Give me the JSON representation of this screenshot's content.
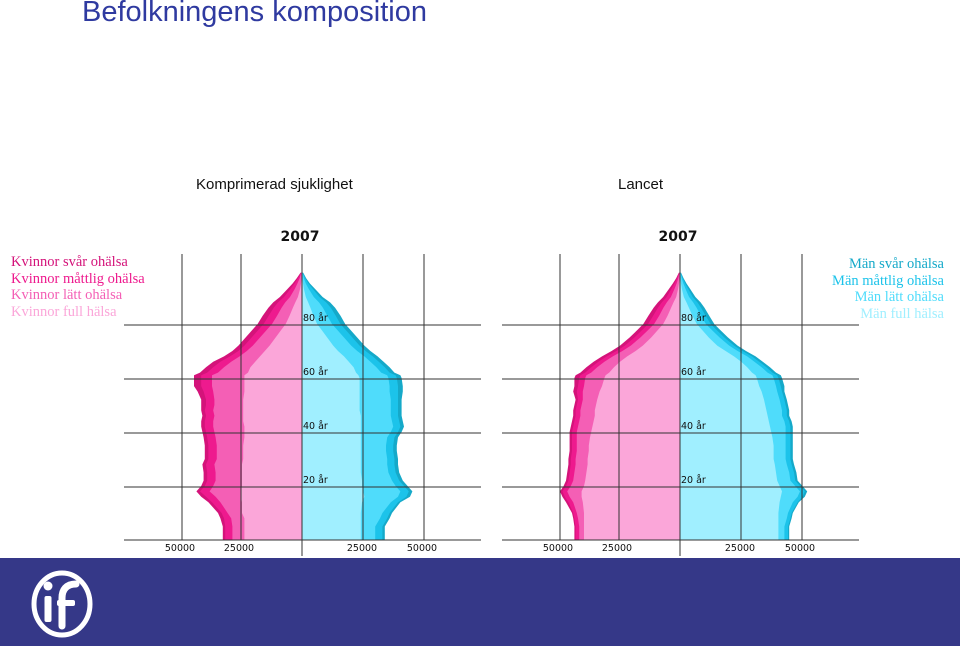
{
  "header": {
    "title": "Befolkningens komposition"
  },
  "subtitles": [
    "Komprimerad sjuklighet",
    "Lancet"
  ],
  "legend_women": [
    "Kvinnor svår ohälsa",
    "Kvinnor måttlig ohälsa",
    "Kvinnor lätt ohälsa",
    "Kvinnor full hälsa"
  ],
  "legend_men": [
    "Män svår ohälsa",
    "Män måttlig ohälsa",
    "Män lätt ohälsa",
    "Män full hälsa"
  ],
  "colors": {
    "women": [
      "#d4137a",
      "#ee1a8e",
      "#f45fb5",
      "#fba6d9"
    ],
    "men": [
      "#15a9c9",
      "#1cc3ea",
      "#4fdcfb",
      "#a0efff"
    ],
    "footer": "#353888",
    "title": "#2f3aa0"
  },
  "chart_data": [
    {
      "type": "area",
      "title": "2007",
      "subtitle": "Komprimerad sjuklighet",
      "x_ticks": [
        "50000",
        "25000",
        "25000",
        "50000"
      ],
      "y_ticks": [
        "80 år",
        "60 år",
        "40 år",
        "20 år"
      ],
      "xlim": [
        -60000,
        60000
      ],
      "ages": [
        0,
        5,
        8,
        10,
        14,
        16,
        18,
        20,
        22,
        25,
        28,
        30,
        33,
        35,
        38,
        40,
        42,
        44,
        46,
        48,
        50,
        52,
        55,
        57,
        60,
        61,
        62,
        64,
        66,
        68,
        70,
        72,
        75,
        78,
        80,
        83,
        86,
        88,
        90,
        93,
        95,
        97,
        99
      ],
      "series": [
        {
          "name": "Kvinnor full hälsa",
          "values": [
            -24000,
            -24000,
            -24000,
            -25000,
            -25000,
            -25500,
            -25500,
            -25000,
            -25000,
            -25000,
            -25000,
            -24500,
            -24500,
            -24500,
            -24000,
            -24000,
            -24000,
            -24500,
            -24500,
            -24500,
            -24500,
            -24500,
            -24000,
            -24000,
            -24000,
            -24000,
            -22500,
            -21500,
            -19500,
            -17500,
            -15500,
            -13500,
            -11000,
            -8500,
            -6800,
            -5200,
            -3800,
            -2800,
            -1700,
            -800,
            -400,
            -150,
            -30
          ]
        },
        {
          "name": "Kvinnor lätt ohälsa",
          "values": [
            -5000,
            -5000,
            -5500,
            -6000,
            -9000,
            -10500,
            -13000,
            -12000,
            -11000,
            -11000,
            -11500,
            -11000,
            -11000,
            -11000,
            -12000,
            -12500,
            -13000,
            -12500,
            -12000,
            -12500,
            -12000,
            -12000,
            -13000,
            -13500,
            -13500,
            -13500,
            -12500,
            -11000,
            -10000,
            -8500,
            -7500,
            -7000,
            -6500,
            -6000,
            -5700,
            -5200,
            -4700,
            -4200,
            -3300,
            -2200,
            -1500,
            -800,
            -250
          ]
        },
        {
          "name": "Kvinnor måttlig ohälsa",
          "values": [
            -3000,
            -3000,
            -3000,
            -2500,
            -3500,
            -4000,
            -4000,
            -3500,
            -3500,
            -3500,
            -3500,
            -3500,
            -3500,
            -3500,
            -3500,
            -3500,
            -3500,
            -3500,
            -3500,
            -3500,
            -3500,
            -3500,
            -4000,
            -4500,
            -4500,
            -4500,
            -4500,
            -4500,
            -4500,
            -4000,
            -3500,
            -3500,
            -3500,
            -3500,
            -3500,
            -3500,
            -3300,
            -3000,
            -2500,
            -1800,
            -1200,
            -700,
            -200
          ]
        },
        {
          "name": "Kvinnor svår ohälsa",
          "values": [
            -1000,
            -1000,
            -1500,
            -1500,
            -1500,
            -2000,
            -1500,
            -1500,
            -1500,
            -1500,
            -1500,
            -1500,
            -1500,
            -1500,
            -1500,
            -1500,
            -1500,
            -1500,
            -1500,
            -1500,
            -2000,
            -2000,
            -2500,
            -3000,
            -3000,
            -3000,
            -3000,
            -3000,
            -3000,
            -2500,
            -2500,
            -2500,
            -2500,
            -2500,
            -2500,
            -2500,
            -2200,
            -2000,
            -1700,
            -1200,
            -800,
            -500,
            -150
          ]
        },
        {
          "name": "Män full hälsa",
          "values": [
            24500,
            24500,
            24500,
            24500,
            25000,
            26000,
            25500,
            25000,
            25000,
            24500,
            24500,
            24500,
            24500,
            24500,
            24500,
            24500,
            24500,
            24500,
            24500,
            24000,
            24000,
            24000,
            24000,
            24000,
            24000,
            23500,
            22500,
            21500,
            19500,
            17500,
            15000,
            13000,
            10500,
            8000,
            6300,
            4800,
            3500,
            2600,
            1600,
            800,
            400,
            150,
            30
          ]
        },
        {
          "name": "Män lätt ohälsa",
          "values": [
            6000,
            6000,
            8000,
            9000,
            12000,
            14000,
            15500,
            14000,
            12500,
            11500,
            11000,
            11000,
            10500,
            10500,
            11000,
            12500,
            13500,
            13000,
            12500,
            13000,
            13000,
            13000,
            12500,
            12500,
            12000,
            12000,
            10500,
            9500,
            9000,
            8500,
            8000,
            7500,
            7000,
            6500,
            6200,
            5800,
            5200,
            4500,
            3300,
            2000,
            1200,
            600,
            180
          ]
        },
        {
          "name": "Män måttlig ohälsa",
          "values": [
            3000,
            3000,
            3000,
            3000,
            3000,
            3500,
            3500,
            3500,
            3000,
            3000,
            3000,
            3000,
            3000,
            3000,
            3000,
            3000,
            3000,
            3000,
            3000,
            3000,
            3000,
            3000,
            3500,
            3500,
            3500,
            3500,
            3500,
            3500,
            3500,
            3500,
            3500,
            3500,
            3500,
            3500,
            3500,
            3500,
            3300,
            3000,
            2400,
            1700,
            1100,
            600,
            200
          ]
        },
        {
          "name": "Män svår ohälsa",
          "values": [
            1000,
            1000,
            1000,
            1000,
            1000,
            1500,
            1500,
            1500,
            1500,
            1500,
            1500,
            1500,
            1500,
            1500,
            1500,
            1500,
            1500,
            1500,
            1500,
            1500,
            1500,
            1500,
            2000,
            2000,
            2000,
            2000,
            2000,
            2000,
            2000,
            2000,
            2000,
            2000,
            2000,
            2000,
            2000,
            2000,
            1800,
            1600,
            1300,
            900,
            600,
            350,
            120
          ]
        }
      ]
    },
    {
      "type": "area",
      "title": "2007",
      "subtitle": "Lancet",
      "x_ticks": [
        "50000",
        "25000",
        "25000",
        "50000"
      ],
      "y_ticks": [
        "80 år",
        "60 år",
        "40 år",
        "20 år"
      ],
      "xlim": [
        -60000,
        60000
      ],
      "ages": [
        0,
        5,
        8,
        10,
        14,
        16,
        18,
        20,
        22,
        25,
        28,
        30,
        33,
        35,
        38,
        40,
        42,
        44,
        46,
        48,
        50,
        52,
        55,
        57,
        60,
        61,
        62,
        64,
        66,
        68,
        70,
        72,
        75,
        78,
        80,
        83,
        86,
        88,
        90,
        93,
        95,
        97,
        99
      ],
      "series": [
        {
          "name": "Kvinnor full hälsa",
          "values": [
            -40000,
            -40000,
            -40000,
            -40000,
            -40500,
            -41000,
            -41000,
            -40000,
            -39500,
            -39000,
            -38500,
            -38500,
            -38000,
            -38000,
            -37500,
            -37000,
            -36500,
            -36000,
            -35500,
            -35500,
            -35000,
            -34500,
            -33500,
            -32500,
            -31500,
            -31000,
            -29500,
            -27500,
            -25000,
            -22000,
            -18500,
            -15500,
            -12000,
            -9000,
            -7000,
            -5200,
            -3700,
            -2700,
            -1600,
            -800,
            -400,
            -150,
            -30
          ]
        },
        {
          "name": "Kvinnor lätt ohälsa",
          "values": [
            -2000,
            -2000,
            -2500,
            -3000,
            -4000,
            -5000,
            -6000,
            -5500,
            -5000,
            -5000,
            -5000,
            -5000,
            -5000,
            -5000,
            -5500,
            -6000,
            -6000,
            -6000,
            -6000,
            -6000,
            -6000,
            -6000,
            -7000,
            -7500,
            -8000,
            -8000,
            -7500,
            -7000,
            -6500,
            -6000,
            -5500,
            -5000,
            -4500,
            -4000,
            -3800,
            -3500,
            -3200,
            -2800,
            -2200,
            -1500,
            -1000,
            -550,
            -180
          ]
        },
        {
          "name": "Kvinnor måttlig ohälsa",
          "values": [
            -1500,
            -1500,
            -1500,
            -1500,
            -2000,
            -2000,
            -2000,
            -2000,
            -2000,
            -2000,
            -2000,
            -2000,
            -2000,
            -2000,
            -2000,
            -2000,
            -2000,
            -2000,
            -2000,
            -2000,
            -2000,
            -2000,
            -2500,
            -2500,
            -2500,
            -2500,
            -2500,
            -2500,
            -2500,
            -2500,
            -2500,
            -2500,
            -2500,
            -2500,
            -2500,
            -2500,
            -2300,
            -2100,
            -1800,
            -1300,
            -900,
            -500,
            -150
          ]
        },
        {
          "name": "Kvinnor svår ohälsa",
          "values": [
            -500,
            -500,
            -500,
            -500,
            -1000,
            -1000,
            -1000,
            -1000,
            -1000,
            -1000,
            -1000,
            -1000,
            -1000,
            -1000,
            -1000,
            -1000,
            -1000,
            -1000,
            -1000,
            -1000,
            -1000,
            -1000,
            -1500,
            -1500,
            -2000,
            -2000,
            -2000,
            -2000,
            -2000,
            -2000,
            -2000,
            -2000,
            -2000,
            -2000,
            -2000,
            -2000,
            -1800,
            -1600,
            -1400,
            -1000,
            -700,
            -400,
            -120
          ]
        },
        {
          "name": "Män full hälsa",
          "values": [
            41000,
            41000,
            41000,
            41000,
            41500,
            42000,
            42500,
            41500,
            40500,
            40000,
            39500,
            39000,
            39000,
            39000,
            38500,
            38000,
            37500,
            37000,
            36500,
            36000,
            35500,
            35000,
            34000,
            33000,
            32000,
            31500,
            30000,
            28000,
            25500,
            22500,
            19000,
            15500,
            12000,
            9000,
            7000,
            5200,
            3700,
            2700,
            1600,
            800,
            400,
            150,
            30
          ]
        },
        {
          "name": "Män lätt ohälsa",
          "values": [
            2500,
            2500,
            3500,
            4000,
            5500,
            7000,
            7500,
            6500,
            5500,
            5500,
            5000,
            5000,
            5000,
            5000,
            5500,
            6000,
            6500,
            6500,
            6000,
            6500,
            6500,
            6500,
            6500,
            7000,
            7000,
            7000,
            6500,
            6000,
            5500,
            5500,
            5000,
            5000,
            4500,
            4000,
            3800,
            3500,
            3200,
            2800,
            2200,
            1500,
            1000,
            550,
            180
          ]
        },
        {
          "name": "Män måttlig ohälsa",
          "values": [
            1500,
            1500,
            1500,
            1500,
            2000,
            2000,
            2000,
            2000,
            2000,
            2000,
            2000,
            2000,
            2000,
            2000,
            2000,
            2000,
            2000,
            2000,
            2000,
            2000,
            2000,
            2000,
            2000,
            2000,
            2000,
            2000,
            2000,
            2000,
            2000,
            2000,
            2000,
            2000,
            2000,
            2000,
            2000,
            2000,
            1900,
            1800,
            1500,
            1100,
            750,
            420,
            140
          ]
        },
        {
          "name": "Män svår ohälsa",
          "values": [
            500,
            500,
            500,
            500,
            500,
            1000,
            1000,
            1000,
            1000,
            1000,
            1000,
            1000,
            1000,
            1000,
            1000,
            1000,
            1000,
            1000,
            1000,
            1000,
            1000,
            1000,
            1000,
            1500,
            1500,
            1500,
            1500,
            1500,
            1500,
            1500,
            1500,
            1500,
            1500,
            1500,
            1500,
            1500,
            1400,
            1300,
            1100,
            800,
            550,
            320,
            110
          ]
        }
      ]
    }
  ]
}
